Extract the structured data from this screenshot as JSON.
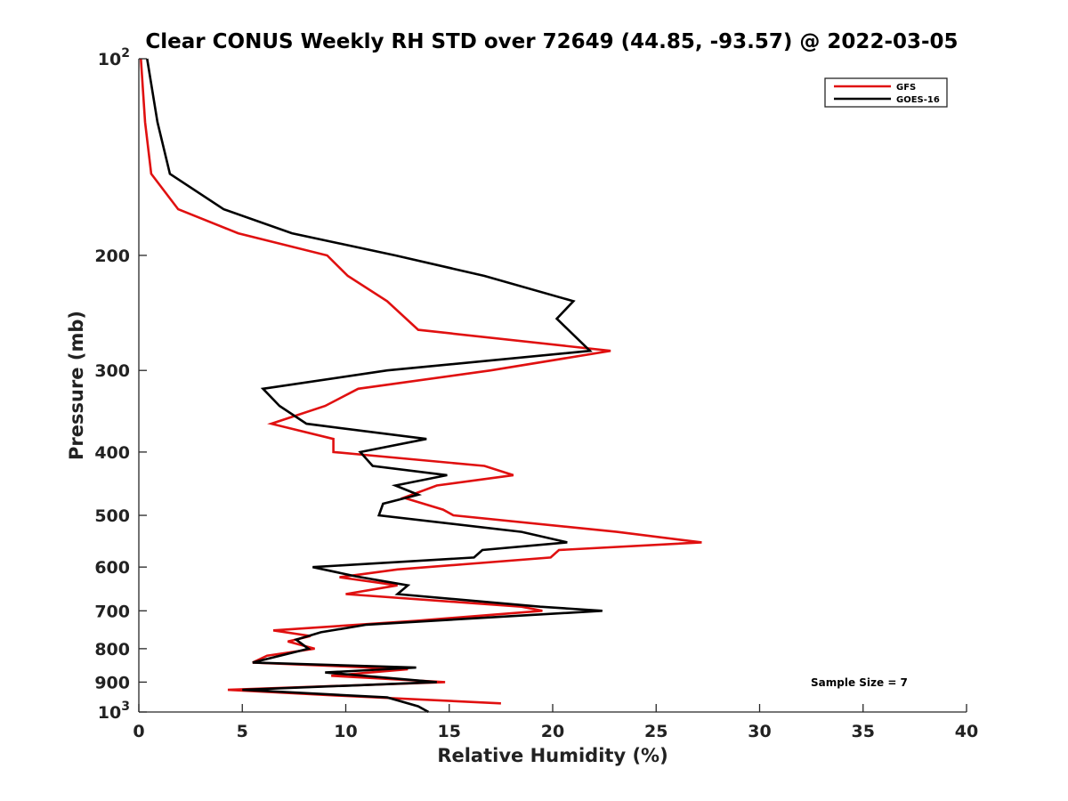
{
  "chart_data": {
    "type": "line",
    "title": "Clear CONUS Weekly RH STD over 72649 (44.85, -93.57) @ 2022-03-05",
    "xlabel": "Relative Humidity (%)",
    "ylabel": "Pressure (mb)",
    "xlim": [
      0,
      40
    ],
    "ylim": [
      100,
      1000
    ],
    "y_scale": "log",
    "y_reversed": true,
    "grid": false,
    "legend_position": "top-right",
    "x_ticks": [
      0,
      5,
      10,
      15,
      20,
      25,
      30,
      35,
      40
    ],
    "x_tick_labels": [
      "0",
      "5",
      "10",
      "15",
      "20",
      "25",
      "30",
      "35",
      "40"
    ],
    "y_ticks": [
      100,
      200,
      300,
      400,
      500,
      600,
      700,
      800,
      900,
      1000
    ],
    "y_tick_labels": [
      {
        "base": "10",
        "exp": "2"
      },
      {
        "base": "200",
        "exp": ""
      },
      {
        "base": "300",
        "exp": ""
      },
      {
        "base": "400",
        "exp": ""
      },
      {
        "base": "500",
        "exp": ""
      },
      {
        "base": "600",
        "exp": ""
      },
      {
        "base": "700",
        "exp": ""
      },
      {
        "base": "800",
        "exp": ""
      },
      {
        "base": "900",
        "exp": ""
      },
      {
        "base": "10",
        "exp": "3"
      }
    ],
    "annotation": "Sample Size = 7",
    "series": [
      {
        "name": "GFS",
        "color": "#e01010",
        "points": [
          [
            0.1,
            100
          ],
          [
            0.3,
            125
          ],
          [
            0.6,
            150
          ],
          [
            1.9,
            170
          ],
          [
            4.8,
            185
          ],
          [
            9.1,
            200
          ],
          [
            10.1,
            215
          ],
          [
            12.0,
            235
          ],
          [
            13.5,
            260
          ],
          [
            22.8,
            280
          ],
          [
            17.0,
            300
          ],
          [
            10.6,
            320
          ],
          [
            9.0,
            340
          ],
          [
            6.4,
            362
          ],
          [
            9.4,
            382
          ],
          [
            9.4,
            400
          ],
          [
            16.7,
            420
          ],
          [
            18.1,
            434
          ],
          [
            14.4,
            450
          ],
          [
            12.8,
            470
          ],
          [
            14.7,
            490
          ],
          [
            15.2,
            500
          ],
          [
            23.1,
            530
          ],
          [
            27.2,
            550
          ],
          [
            20.3,
            565
          ],
          [
            19.9,
            580
          ],
          [
            12.5,
            605
          ],
          [
            9.7,
            622
          ],
          [
            12.5,
            640
          ],
          [
            10.0,
            660
          ],
          [
            18.5,
            690
          ],
          [
            19.5,
            700
          ],
          [
            13.4,
            725
          ],
          [
            6.5,
            750
          ],
          [
            8.3,
            765
          ],
          [
            7.2,
            780
          ],
          [
            8.5,
            800
          ],
          [
            6.2,
            820
          ],
          [
            5.5,
            840
          ],
          [
            13.0,
            860
          ],
          [
            9.3,
            880
          ],
          [
            14.8,
            900
          ],
          [
            4.3,
            925
          ],
          [
            10.0,
            945
          ],
          [
            17.5,
            970
          ]
        ]
      },
      {
        "name": "GOES-16",
        "color": "#000000",
        "points": [
          [
            0.4,
            100
          ],
          [
            0.9,
            125
          ],
          [
            1.5,
            150
          ],
          [
            4.1,
            170
          ],
          [
            7.4,
            185
          ],
          [
            12.4,
            200
          ],
          [
            16.7,
            215
          ],
          [
            21.0,
            235
          ],
          [
            20.2,
            250
          ],
          [
            21.8,
            280
          ],
          [
            12.0,
            300
          ],
          [
            6.0,
            320
          ],
          [
            6.8,
            340
          ],
          [
            8.1,
            362
          ],
          [
            13.9,
            382
          ],
          [
            10.7,
            400
          ],
          [
            11.3,
            420
          ],
          [
            14.9,
            434
          ],
          [
            12.4,
            450
          ],
          [
            13.5,
            465
          ],
          [
            11.8,
            480
          ],
          [
            11.6,
            500
          ],
          [
            18.5,
            530
          ],
          [
            20.7,
            550
          ],
          [
            16.6,
            565
          ],
          [
            16.2,
            580
          ],
          [
            8.4,
            600
          ],
          [
            10.5,
            620
          ],
          [
            13.0,
            640
          ],
          [
            12.5,
            660
          ],
          [
            19.4,
            690
          ],
          [
            22.4,
            700
          ],
          [
            11.0,
            735
          ],
          [
            8.8,
            755
          ],
          [
            7.6,
            775
          ],
          [
            8.2,
            800
          ],
          [
            5.5,
            840
          ],
          [
            13.4,
            855
          ],
          [
            9.0,
            870
          ],
          [
            14.4,
            900
          ],
          [
            5.0,
            925
          ],
          [
            12.0,
            950
          ],
          [
            13.5,
            980
          ],
          [
            14.0,
            1000
          ]
        ]
      }
    ]
  }
}
